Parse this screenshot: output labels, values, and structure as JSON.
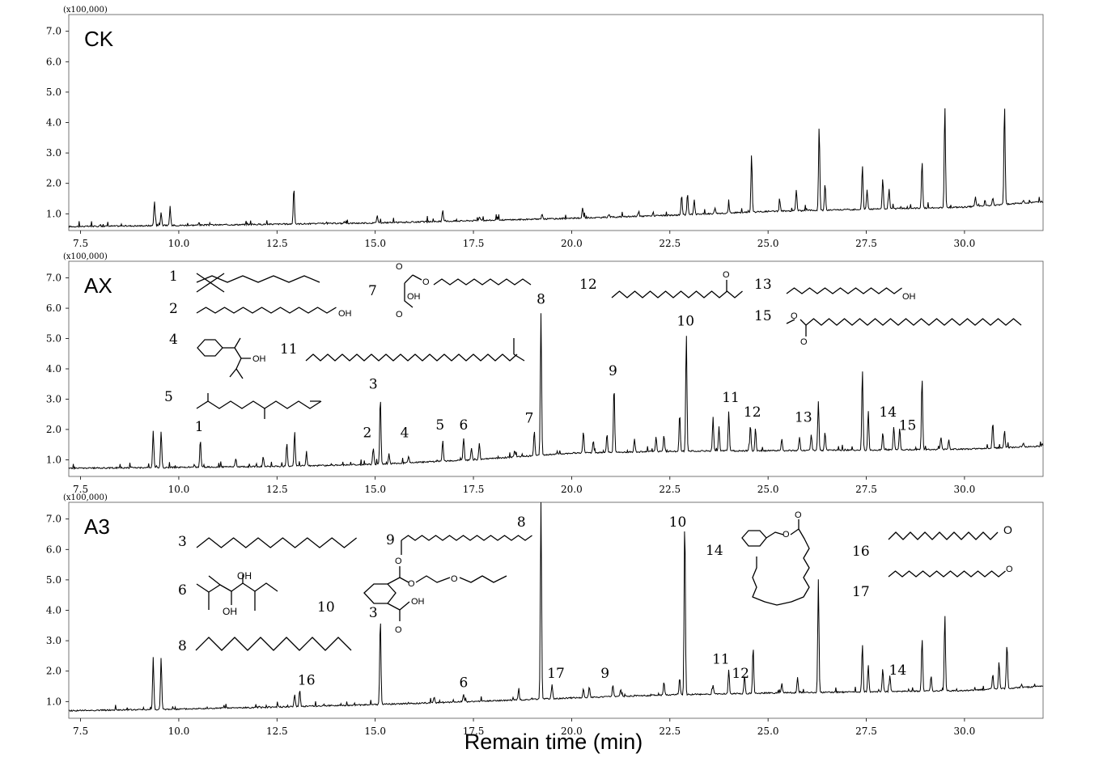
{
  "chart_data": {
    "type": "line",
    "xlabel": "Remain time (min)",
    "y_multiplier": "(x100,000)",
    "xlim": [
      7.2,
      32.0
    ],
    "ylim": [
      0.45,
      7.55
    ],
    "xticks": [
      7.5,
      10.0,
      12.5,
      15.0,
      17.5,
      20.0,
      22.5,
      25.0,
      27.5,
      30.0
    ],
    "xtick_labels": [
      "7.5",
      "10.0",
      "12.5",
      "15.0",
      "17.5",
      "20.0",
      "22.5",
      "25.0",
      "27.5",
      "30.0"
    ],
    "yticks": [
      1.0,
      2.0,
      3.0,
      4.0,
      5.0,
      6.0,
      7.0
    ],
    "ytick_labels": [
      "1.0",
      "2.0",
      "3.0",
      "4.0",
      "5.0",
      "6.0",
      "7.0"
    ],
    "grid": false,
    "panels": [
      {
        "name": "CK",
        "baseline": [
          [
            7.2,
            0.58
          ],
          [
            10.0,
            0.62
          ],
          [
            15.0,
            0.7
          ],
          [
            20.0,
            0.85
          ],
          [
            22.5,
            0.95
          ],
          [
            25.0,
            1.08
          ],
          [
            27.5,
            1.15
          ],
          [
            30.0,
            1.22
          ],
          [
            32.0,
            1.4
          ]
        ],
        "peaks": [
          {
            "x": 9.38,
            "y": 1.4
          },
          {
            "x": 9.55,
            "y": 1.05
          },
          {
            "x": 9.78,
            "y": 1.15
          },
          {
            "x": 12.93,
            "y": 1.85
          },
          {
            "x": 15.05,
            "y": 0.95
          },
          {
            "x": 16.72,
            "y": 1.1
          },
          {
            "x": 17.65,
            "y": 0.9
          },
          {
            "x": 19.25,
            "y": 1.0
          },
          {
            "x": 20.28,
            "y": 1.2
          },
          {
            "x": 20.95,
            "y": 1.0
          },
          {
            "x": 21.7,
            "y": 1.05
          },
          {
            "x": 22.8,
            "y": 1.6
          },
          {
            "x": 22.95,
            "y": 1.65
          },
          {
            "x": 23.12,
            "y": 1.45
          },
          {
            "x": 23.65,
            "y": 1.2
          },
          {
            "x": 24.0,
            "y": 1.3
          },
          {
            "x": 24.58,
            "y": 2.95
          },
          {
            "x": 25.3,
            "y": 1.4
          },
          {
            "x": 25.72,
            "y": 1.8
          },
          {
            "x": 26.3,
            "y": 3.9
          },
          {
            "x": 26.45,
            "y": 2.0
          },
          {
            "x": 27.4,
            "y": 2.6
          },
          {
            "x": 27.52,
            "y": 1.8
          },
          {
            "x": 27.92,
            "y": 2.15
          },
          {
            "x": 28.08,
            "y": 1.8
          },
          {
            "x": 28.92,
            "y": 2.75
          },
          {
            "x": 29.5,
            "y": 4.55
          },
          {
            "x": 30.28,
            "y": 1.55
          },
          {
            "x": 30.72,
            "y": 1.5
          },
          {
            "x": 31.02,
            "y": 4.6
          },
          {
            "x": 31.5,
            "y": 1.45
          }
        ],
        "peak_labels": [],
        "structures": []
      },
      {
        "name": "AX",
        "baseline": [
          [
            7.2,
            0.72
          ],
          [
            10.0,
            0.75
          ],
          [
            12.5,
            0.78
          ],
          [
            15.0,
            0.85
          ],
          [
            17.5,
            1.0
          ],
          [
            20.0,
            1.22
          ],
          [
            22.5,
            1.28
          ],
          [
            25.0,
            1.3
          ],
          [
            27.5,
            1.32
          ],
          [
            30.0,
            1.35
          ],
          [
            32.0,
            1.45
          ]
        ],
        "peaks": [
          {
            "x": 9.35,
            "y": 1.95
          },
          {
            "x": 9.55,
            "y": 1.95
          },
          {
            "x": 10.55,
            "y": 1.65
          },
          {
            "x": 11.45,
            "y": 1.05
          },
          {
            "x": 12.15,
            "y": 1.1
          },
          {
            "x": 12.75,
            "y": 1.55
          },
          {
            "x": 12.95,
            "y": 1.95
          },
          {
            "x": 13.25,
            "y": 1.2
          },
          {
            "x": 14.95,
            "y": 1.4
          },
          {
            "x": 15.13,
            "y": 3.05
          },
          {
            "x": 15.35,
            "y": 1.2
          },
          {
            "x": 15.85,
            "y": 1.1
          },
          {
            "x": 16.72,
            "y": 1.65
          },
          {
            "x": 17.25,
            "y": 1.7
          },
          {
            "x": 17.45,
            "y": 1.4
          },
          {
            "x": 17.65,
            "y": 1.55
          },
          {
            "x": 18.55,
            "y": 1.3
          },
          {
            "x": 19.05,
            "y": 1.95
          },
          {
            "x": 19.22,
            "y": 5.85
          },
          {
            "x": 20.3,
            "y": 1.95
          },
          {
            "x": 20.55,
            "y": 1.6
          },
          {
            "x": 20.9,
            "y": 1.85
          },
          {
            "x": 21.08,
            "y": 3.45
          },
          {
            "x": 21.6,
            "y": 1.7
          },
          {
            "x": 22.15,
            "y": 1.75
          },
          {
            "x": 22.35,
            "y": 1.8
          },
          {
            "x": 22.75,
            "y": 2.55
          },
          {
            "x": 22.92,
            "y": 5.15
          },
          {
            "x": 23.6,
            "y": 2.4
          },
          {
            "x": 23.75,
            "y": 2.1
          },
          {
            "x": 24.0,
            "y": 2.6
          },
          {
            "x": 24.55,
            "y": 2.15
          },
          {
            "x": 24.68,
            "y": 2.05
          },
          {
            "x": 25.35,
            "y": 1.7
          },
          {
            "x": 25.8,
            "y": 1.75
          },
          {
            "x": 26.1,
            "y": 1.85
          },
          {
            "x": 26.28,
            "y": 2.95
          },
          {
            "x": 26.45,
            "y": 1.9
          },
          {
            "x": 27.4,
            "y": 4.0
          },
          {
            "x": 27.55,
            "y": 2.6
          },
          {
            "x": 27.92,
            "y": 1.8
          },
          {
            "x": 28.2,
            "y": 2.1
          },
          {
            "x": 28.35,
            "y": 2.05
          },
          {
            "x": 28.92,
            "y": 3.7
          },
          {
            "x": 29.4,
            "y": 1.75
          },
          {
            "x": 29.6,
            "y": 1.65
          },
          {
            "x": 30.72,
            "y": 2.25
          },
          {
            "x": 31.02,
            "y": 1.95
          },
          {
            "x": 31.5,
            "y": 1.55
          }
        ],
        "peak_labels": [
          {
            "text": "1",
            "x": 10.52,
            "y": 1.95
          },
          {
            "text": "2",
            "x": 14.8,
            "y": 1.75
          },
          {
            "text": "3",
            "x": 14.95,
            "y": 3.35
          },
          {
            "text": "4",
            "x": 15.75,
            "y": 1.75
          },
          {
            "text": "5",
            "x": 16.65,
            "y": 2.0
          },
          {
            "text": "6",
            "x": 17.25,
            "y": 2.0
          },
          {
            "text": "7",
            "x": 18.92,
            "y": 2.22
          },
          {
            "text": "8",
            "x": 19.22,
            "y": 6.15
          },
          {
            "text": "9",
            "x": 21.05,
            "y": 3.78
          },
          {
            "text": "10",
            "x": 22.9,
            "y": 5.43
          },
          {
            "text": "11",
            "x": 24.05,
            "y": 2.9
          },
          {
            "text": "12",
            "x": 24.6,
            "y": 2.42
          },
          {
            "text": "13",
            "x": 25.9,
            "y": 2.25
          },
          {
            "text": "14",
            "x": 28.05,
            "y": 2.42
          },
          {
            "text": "15",
            "x": 28.55,
            "y": 1.98
          }
        ],
        "structures": [
          {
            "num": "1",
            "name": "branched alkane"
          },
          {
            "num": "2",
            "name": "long-chain alcohol"
          },
          {
            "num": "4",
            "name": "phenyl allylic alcohol"
          },
          {
            "num": "5",
            "name": "branched alkane"
          },
          {
            "num": "7",
            "name": "maleic acid monoester"
          },
          {
            "num": "11",
            "name": "branched alkane"
          },
          {
            "num": "12",
            "name": "methyl ketone"
          },
          {
            "num": "13",
            "name": "long-chain alcohol"
          },
          {
            "num": "15",
            "name": "methyl ester"
          }
        ]
      },
      {
        "name": "A3",
        "baseline": [
          [
            7.2,
            0.7
          ],
          [
            10.0,
            0.75
          ],
          [
            12.5,
            0.82
          ],
          [
            15.0,
            0.9
          ],
          [
            17.5,
            1.0
          ],
          [
            20.0,
            1.12
          ],
          [
            22.5,
            1.22
          ],
          [
            25.0,
            1.28
          ],
          [
            27.5,
            1.32
          ],
          [
            30.0,
            1.36
          ],
          [
            32.0,
            1.5
          ]
        ],
        "peaks": [
          {
            "x": 9.35,
            "y": 2.45
          },
          {
            "x": 9.55,
            "y": 2.45
          },
          {
            "x": 12.95,
            "y": 1.25
          },
          {
            "x": 13.08,
            "y": 1.4
          },
          {
            "x": 15.13,
            "y": 3.75
          },
          {
            "x": 16.5,
            "y": 1.15
          },
          {
            "x": 17.25,
            "y": 1.25
          },
          {
            "x": 18.65,
            "y": 1.35
          },
          {
            "x": 19.22,
            "y": 7.55
          },
          {
            "x": 19.5,
            "y": 1.55
          },
          {
            "x": 20.3,
            "y": 1.4
          },
          {
            "x": 20.45,
            "y": 1.5
          },
          {
            "x": 21.05,
            "y": 1.55
          },
          {
            "x": 21.25,
            "y": 1.4
          },
          {
            "x": 22.35,
            "y": 1.65
          },
          {
            "x": 22.75,
            "y": 1.8
          },
          {
            "x": 22.88,
            "y": 7.05
          },
          {
            "x": 23.6,
            "y": 1.55
          },
          {
            "x": 24.0,
            "y": 2.05
          },
          {
            "x": 24.4,
            "y": 1.85
          },
          {
            "x": 24.62,
            "y": 2.8
          },
          {
            "x": 25.35,
            "y": 1.6
          },
          {
            "x": 25.75,
            "y": 1.8
          },
          {
            "x": 26.28,
            "y": 5.0
          },
          {
            "x": 27.4,
            "y": 2.9
          },
          {
            "x": 27.55,
            "y": 2.2
          },
          {
            "x": 27.92,
            "y": 2.1
          },
          {
            "x": 28.1,
            "y": 1.85
          },
          {
            "x": 28.92,
            "y": 3.1
          },
          {
            "x": 29.15,
            "y": 1.85
          },
          {
            "x": 29.5,
            "y": 3.85
          },
          {
            "x": 30.72,
            "y": 1.9
          },
          {
            "x": 30.88,
            "y": 2.3
          },
          {
            "x": 31.08,
            "y": 2.9
          },
          {
            "x": 31.45,
            "y": 1.55
          }
        ],
        "peak_labels": [
          {
            "text": "16",
            "x": 13.25,
            "y": 1.55
          },
          {
            "text": "3",
            "x": 14.95,
            "y": 3.78
          },
          {
            "text": "6",
            "x": 17.25,
            "y": 1.48
          },
          {
            "text": "8",
            "x": 18.72,
            "y": 6.75
          },
          {
            "text": "17",
            "x": 19.6,
            "y": 1.78
          },
          {
            "text": "9",
            "x": 20.85,
            "y": 1.78
          },
          {
            "text": "10",
            "x": 22.7,
            "y": 6.75
          },
          {
            "text": "11",
            "x": 23.8,
            "y": 2.25
          },
          {
            "text": "12",
            "x": 24.3,
            "y": 1.78
          },
          {
            "text": "14",
            "x": 28.3,
            "y": 1.88
          }
        ],
        "structures": [
          {
            "num": "3",
            "name": "n-alkane"
          },
          {
            "num": "6",
            "name": "dienediol"
          },
          {
            "num": "8",
            "name": "n-alkane"
          },
          {
            "num": "9",
            "name": "branched alkane"
          },
          {
            "num": "10",
            "name": "phthalate ester"
          },
          {
            "num": "14",
            "name": "benzyl ester"
          },
          {
            "num": "16",
            "name": "aldehyde"
          },
          {
            "num": "17",
            "name": "aldehyde"
          }
        ]
      }
    ]
  }
}
